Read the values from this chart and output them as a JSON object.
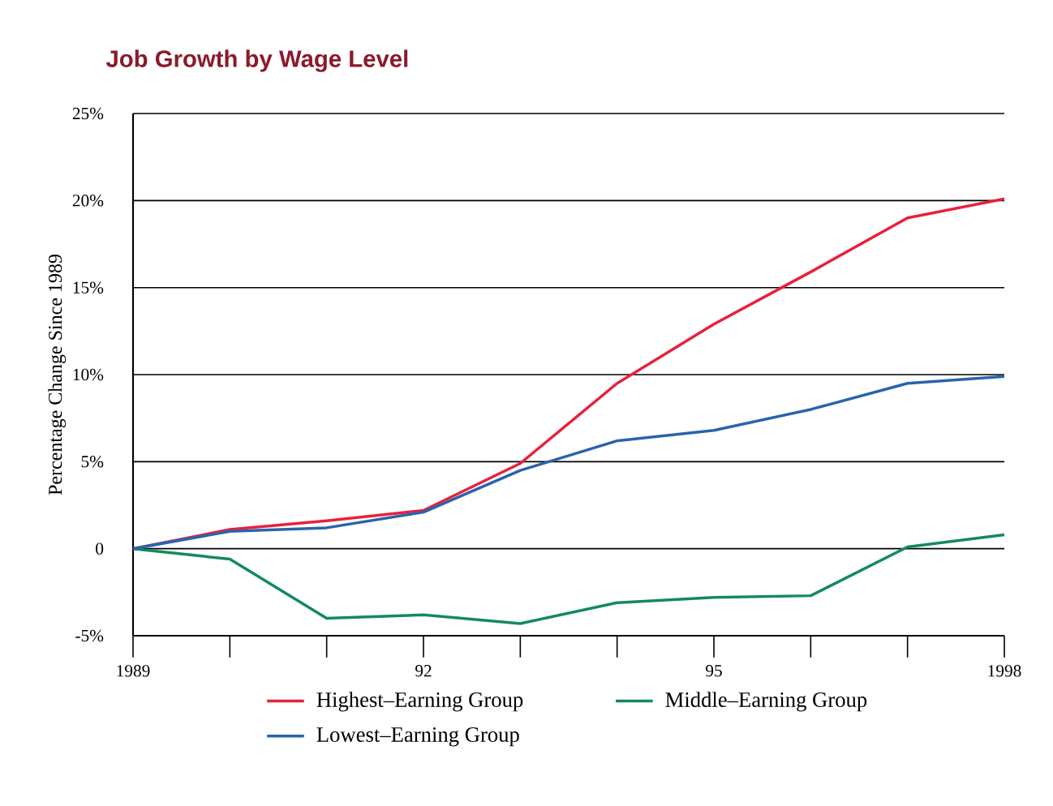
{
  "chart_data": {
    "type": "line",
    "title": "Job Growth by Wage Level",
    "ylabel": "Percentage Change Since 1989",
    "x": [
      1989,
      1990,
      1991,
      1992,
      1993,
      1994,
      1995,
      1996,
      1997,
      1998
    ],
    "xlim": [
      1989,
      1998
    ],
    "xticks": [
      {
        "value": 1989,
        "label": "1989"
      },
      {
        "value": 1990,
        "label": null
      },
      {
        "value": 1991,
        "label": null
      },
      {
        "value": 1992,
        "label": "92"
      },
      {
        "value": 1993,
        "label": null
      },
      {
        "value": 1994,
        "label": null
      },
      {
        "value": 1995,
        "label": "95"
      },
      {
        "value": 1996,
        "label": null
      },
      {
        "value": 1997,
        "label": null
      },
      {
        "value": 1998,
        "label": "1998"
      }
    ],
    "ylim": [
      -5,
      25
    ],
    "yticks": [
      {
        "value": -5,
        "label": "-5%"
      },
      {
        "value": 0,
        "label": "0"
      },
      {
        "value": 5,
        "label": "5%"
      },
      {
        "value": 10,
        "label": "10%"
      },
      {
        "value": 15,
        "label": "15%"
      },
      {
        "value": 20,
        "label": "20%"
      },
      {
        "value": 25,
        "label": "25%"
      }
    ],
    "grid": "y",
    "legend": "bottom",
    "marker": "none",
    "line_style": "solid",
    "series": [
      {
        "name": "Highest–Earning Group",
        "color": "#e8203a",
        "values": [
          0,
          1.1,
          1.6,
          2.2,
          4.9,
          9.5,
          12.9,
          15.9,
          19.0,
          20.1
        ]
      },
      {
        "name": "Middle–Earning Group",
        "color": "#138a5e",
        "values": [
          0,
          -0.6,
          -4.0,
          -3.8,
          -4.3,
          -3.1,
          -2.8,
          -2.7,
          0.1,
          0.8
        ]
      },
      {
        "name": "Lowest–Earning Group",
        "color": "#2a63ad",
        "values": [
          0,
          1.0,
          1.2,
          2.1,
          4.5,
          6.2,
          6.8,
          8.0,
          9.5,
          9.9
        ]
      }
    ]
  }
}
